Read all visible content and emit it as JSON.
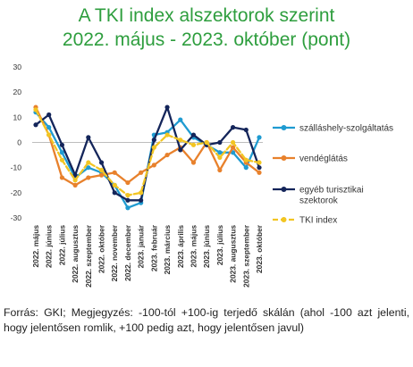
{
  "chart_data": {
    "type": "line",
    "title": "A TKI index alszektorok szerint",
    "subtitle": "2022. május - 2023. október (pont)",
    "categories": [
      "2022. május",
      "2022. június",
      "2022. július",
      "2022. augusztus",
      "2022. szeptember",
      "2022. október",
      "2022. november",
      "2022. december",
      "2023. január",
      "2023. február",
      "2023. március",
      "2023. április",
      "2023. május",
      "2023. június",
      "2023. július",
      "2023. augusztus",
      "2023. szeptember",
      "2023. október"
    ],
    "ylim": [
      -30,
      30
    ],
    "yticks": [
      30,
      20,
      10,
      0,
      -10,
      -20,
      -30
    ],
    "grid": false,
    "legend_position": "right",
    "series": [
      {
        "name": "szálláshely-szolgáltatás",
        "color": "#1f9bd1",
        "dash": "solid",
        "values": [
          12,
          6,
          -4,
          -14,
          -10,
          -12,
          -17,
          -26,
          -24,
          3,
          4,
          9,
          2,
          -1,
          -4,
          -4,
          -10,
          2
        ]
      },
      {
        "name": "vendéglátás",
        "color": "#e8812c",
        "dash": "solid",
        "values": [
          14,
          3,
          -14,
          -17,
          -14,
          -13,
          -12,
          -16,
          -12,
          -9,
          -5,
          -2,
          -8,
          0,
          -11,
          -2,
          -8,
          -12
        ]
      },
      {
        "name": "egyéb turisztikai szolgáltatók",
        "color": "#14255a",
        "dash": "solid",
        "values": [
          7,
          11,
          -1,
          -13,
          2,
          -8,
          -20,
          -23,
          -23,
          1,
          14,
          -3,
          3,
          -1,
          0,
          6,
          5,
          -10
        ]
      },
      {
        "name": "TKI index",
        "color": "#f2c522",
        "dash": "dashed",
        "values": [
          13,
          3,
          -7,
          -15,
          -8,
          -11,
          -17,
          -21,
          -20,
          -2,
          3,
          1,
          -1,
          0,
          -6,
          0,
          -7,
          -8
        ]
      }
    ]
  },
  "legend": {
    "items": [
      {
        "lines": [
          "szálláshely-szolgáltatás"
        ]
      },
      {
        "lines": [
          "vendéglátás"
        ]
      },
      {
        "lines": [
          "egyéb turisztikai",
          "szektorok"
        ]
      },
      {
        "lines": [
          "TKI index"
        ]
      }
    ]
  },
  "footnote": "Forrás: GKI; Megjegyzés: -100-tól +100-ig terjedő skálán (ahol -100 azt jelenti, hogy jelentősen romlik, +100 pedig azt, hogy jelentősen javul)"
}
